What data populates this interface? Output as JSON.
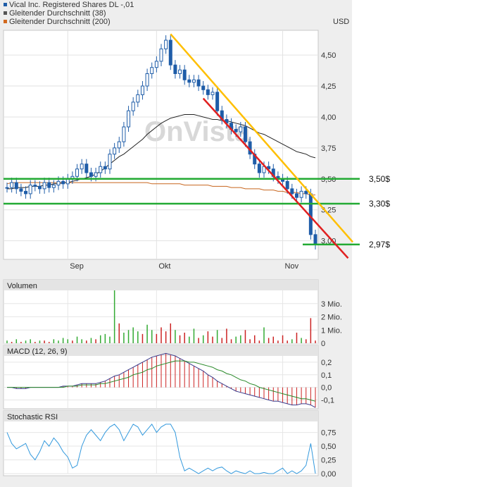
{
  "legend": [
    {
      "label": "Vical Inc. Registered Shares DL -,01",
      "color": "#1f5da8"
    },
    {
      "label": "Gleitender Durchschnitt (38)",
      "color": "#555555"
    },
    {
      "label": "Gleitender Durchschnitt (200)",
      "color": "#d2691e"
    }
  ],
  "watermark": "OnVista",
  "chart_data": [
    {
      "type": "candlestick",
      "title": "",
      "unit": "USD",
      "x_ticks": [
        "Sep",
        "Okt",
        "Nov"
      ],
      "y_ticks": [
        "4,50",
        "4,25",
        "4,00",
        "3,75",
        "3,50",
        "3,25",
        "3,00"
      ],
      "y_tick_values": [
        4.5,
        4.25,
        4.0,
        3.75,
        3.5,
        3.25,
        3.0
      ],
      "ylim": [
        2.85,
        4.7
      ],
      "grid": true,
      "colors": {
        "price": "#1f5da8",
        "ma38": "#222222",
        "ma200": "#c8661e",
        "support": "#22aa33",
        "resistance": "#ffbf00",
        "channel": "#e02020"
      },
      "close": [
        3.43,
        3.47,
        3.42,
        3.4,
        3.38,
        3.45,
        3.44,
        3.42,
        3.47,
        3.43,
        3.45,
        3.48,
        3.46,
        3.5,
        3.52,
        3.58,
        3.62,
        3.55,
        3.52,
        3.55,
        3.6,
        3.58,
        3.7,
        3.75,
        3.8,
        3.92,
        4.05,
        4.12,
        4.18,
        4.25,
        4.35,
        4.4,
        4.45,
        4.55,
        4.62,
        4.42,
        4.35,
        4.38,
        4.3,
        4.28,
        4.3,
        4.25,
        4.22,
        4.18,
        4.2,
        4.05,
        3.98,
        3.95,
        3.9,
        3.88,
        3.92,
        3.8,
        3.7,
        3.62,
        3.55,
        3.6,
        3.58,
        3.52,
        3.5,
        3.48,
        3.42,
        3.38,
        3.35,
        3.4,
        3.38,
        3.05,
        2.97
      ],
      "ma38": [
        3.42,
        3.42,
        3.43,
        3.43,
        3.43,
        3.44,
        3.44,
        3.44,
        3.45,
        3.45,
        3.46,
        3.46,
        3.47,
        3.47,
        3.48,
        3.49,
        3.5,
        3.51,
        3.52,
        3.54,
        3.56,
        3.59,
        3.62,
        3.65,
        3.68,
        3.7,
        3.73,
        3.76,
        3.79,
        3.82,
        3.86,
        3.89,
        3.92,
        3.95,
        3.97,
        3.99,
        4.0,
        4.01,
        4.02,
        4.02,
        4.02,
        4.01,
        4.0,
        3.99,
        3.98,
        3.98,
        3.97,
        3.97,
        3.96,
        3.95,
        3.94,
        3.93,
        3.91,
        3.89,
        3.87,
        3.86,
        3.84,
        3.82,
        3.8,
        3.78,
        3.76,
        3.74,
        3.72,
        3.71,
        3.7,
        3.68,
        3.67
      ],
      "ma200": [
        3.46,
        3.47,
        3.47,
        3.47,
        3.47,
        3.47,
        3.47,
        3.47,
        3.47,
        3.47,
        3.47,
        3.47,
        3.47,
        3.47,
        3.47,
        3.47,
        3.47,
        3.47,
        3.47,
        3.47,
        3.47,
        3.47,
        3.47,
        3.47,
        3.47,
        3.47,
        3.47,
        3.47,
        3.47,
        3.47,
        3.47,
        3.46,
        3.46,
        3.46,
        3.46,
        3.46,
        3.46,
        3.46,
        3.45,
        3.45,
        3.45,
        3.45,
        3.45,
        3.45,
        3.44,
        3.44,
        3.44,
        3.44,
        3.43,
        3.43,
        3.43,
        3.42,
        3.42,
        3.42,
        3.42,
        3.41,
        3.41,
        3.41,
        3.4,
        3.4,
        3.39,
        3.39,
        3.39,
        3.38,
        3.38,
        3.37,
        3.37
      ],
      "horizontal_lines": [
        {
          "value": 3.5,
          "label": "3,50$"
        },
        {
          "value": 3.3,
          "label": "3,30$"
        },
        {
          "value": 2.97,
          "label": "2,97$"
        }
      ],
      "trend_lines": [
        {
          "name": "resistance",
          "from": {
            "index": 35,
            "value": 4.67
          },
          "to": {
            "index": 74,
            "value": 2.99
          }
        },
        {
          "name": "channel",
          "from": {
            "index": 42,
            "value": 4.15
          },
          "to": {
            "index": 73,
            "value": 2.86
          }
        }
      ]
    },
    {
      "type": "bar",
      "title": "Volumen",
      "y_ticks": [
        "3 Mio.",
        "2 Mio.",
        "1 Mio.",
        "0"
      ],
      "y_tick_values": [
        3,
        2,
        1,
        0
      ],
      "ylim": [
        0,
        4
      ],
      "values": [
        0.2,
        0.1,
        0.3,
        0.1,
        0.2,
        0.3,
        0.1,
        0.2,
        0.2,
        0.1,
        0.3,
        0.2,
        0.4,
        0.3,
        0.2,
        0.5,
        0.3,
        0.2,
        0.4,
        0.3,
        0.6,
        0.7,
        0.5,
        4.0,
        1.5,
        0.8,
        1.0,
        1.2,
        0.9,
        0.7,
        1.4,
        1.0,
        0.7,
        1.2,
        0.9,
        1.5,
        1.0,
        0.6,
        0.8,
        0.5,
        1.1,
        0.4,
        0.6,
        0.9,
        0.5,
        1.0,
        0.4,
        1.1,
        0.3,
        0.5,
        0.6,
        1.0,
        0.3,
        0.6,
        0.2,
        1.2,
        0.4,
        0.5,
        0.2,
        0.6,
        0.2,
        0.3,
        0.8,
        0.4,
        0.3,
        1.9,
        0.2
      ],
      "up": [
        true,
        false,
        true,
        false,
        true,
        true,
        false,
        true,
        false,
        false,
        true,
        true,
        true,
        true,
        false,
        true,
        true,
        false,
        true,
        false,
        true,
        true,
        true,
        true,
        false,
        true,
        true,
        true,
        true,
        false,
        true,
        true,
        false,
        false,
        false,
        false,
        true,
        false,
        false,
        true,
        true,
        false,
        true,
        false,
        false,
        true,
        false,
        false,
        false,
        true,
        true,
        false,
        false,
        false,
        false,
        true,
        false,
        false,
        false,
        false,
        false,
        true,
        false,
        true,
        false,
        false,
        false
      ]
    },
    {
      "type": "line",
      "title": "MACD (12, 26, 9)",
      "y_ticks": [
        "0,2",
        "0,1",
        "0,0",
        "-0,1"
      ],
      "y_tick_values": [
        0.2,
        0.1,
        0.0,
        -0.1
      ],
      "ylim": [
        -0.17,
        0.25
      ],
      "series": [
        {
          "key": "macd",
          "values": [
            0.0,
            0.0,
            -0.01,
            -0.01,
            -0.01,
            0.0,
            0.0,
            0.0,
            0.0,
            0.0,
            0.0,
            0.0,
            0.01,
            0.01,
            0.01,
            0.02,
            0.03,
            0.03,
            0.03,
            0.03,
            0.04,
            0.05,
            0.07,
            0.09,
            0.1,
            0.12,
            0.14,
            0.16,
            0.18,
            0.2,
            0.22,
            0.24,
            0.25,
            0.26,
            0.27,
            0.26,
            0.25,
            0.23,
            0.21,
            0.19,
            0.17,
            0.15,
            0.13,
            0.1,
            0.08,
            0.05,
            0.03,
            0.01,
            -0.01,
            -0.03,
            -0.04,
            -0.05,
            -0.06,
            -0.07,
            -0.08,
            -0.09,
            -0.1,
            -0.11,
            -0.11,
            -0.12,
            -0.13,
            -0.14,
            -0.14,
            -0.13,
            -0.13,
            -0.14,
            -0.16
          ]
        },
        {
          "key": "signal",
          "values": [
            0.0,
            0.0,
            0.0,
            0.0,
            0.0,
            0.0,
            0.0,
            0.0,
            0.0,
            0.0,
            0.0,
            0.0,
            0.0,
            0.01,
            0.01,
            0.01,
            0.02,
            0.02,
            0.02,
            0.02,
            0.03,
            0.03,
            0.04,
            0.05,
            0.06,
            0.07,
            0.08,
            0.1,
            0.11,
            0.12,
            0.14,
            0.15,
            0.17,
            0.18,
            0.19,
            0.2,
            0.21,
            0.21,
            0.21,
            0.2,
            0.2,
            0.19,
            0.18,
            0.17,
            0.16,
            0.14,
            0.13,
            0.11,
            0.1,
            0.08,
            0.06,
            0.05,
            0.03,
            0.02,
            0.0,
            -0.01,
            -0.02,
            -0.03,
            -0.04,
            -0.05,
            -0.06,
            -0.07,
            -0.08,
            -0.09,
            -0.09,
            -0.1,
            -0.11
          ]
        }
      ]
    },
    {
      "type": "line",
      "title": "Stochastic RSI",
      "y_ticks": [
        "0,75",
        "0,50",
        "0,25",
        "0,00"
      ],
      "y_tick_values": [
        0.75,
        0.5,
        0.25,
        0.0
      ],
      "ylim": [
        0,
        0.95
      ],
      "values": [
        0.75,
        0.55,
        0.45,
        0.5,
        0.55,
        0.35,
        0.25,
        0.4,
        0.6,
        0.5,
        0.65,
        0.55,
        0.4,
        0.3,
        0.1,
        0.15,
        0.5,
        0.7,
        0.8,
        0.7,
        0.6,
        0.75,
        0.85,
        0.9,
        0.8,
        0.6,
        0.75,
        0.9,
        0.85,
        0.7,
        0.8,
        0.9,
        0.75,
        0.85,
        0.9,
        0.9,
        0.75,
        0.3,
        0.05,
        0.1,
        0.05,
        0.0,
        0.05,
        0.1,
        0.05,
        0.1,
        0.12,
        0.05,
        0.0,
        0.05,
        0.02,
        0.0,
        0.05,
        0.0,
        0.0,
        0.02,
        0.0,
        0.0,
        0.05,
        0.1,
        0.0,
        0.05,
        0.0,
        0.05,
        0.15,
        0.55,
        0.0
      ]
    }
  ]
}
